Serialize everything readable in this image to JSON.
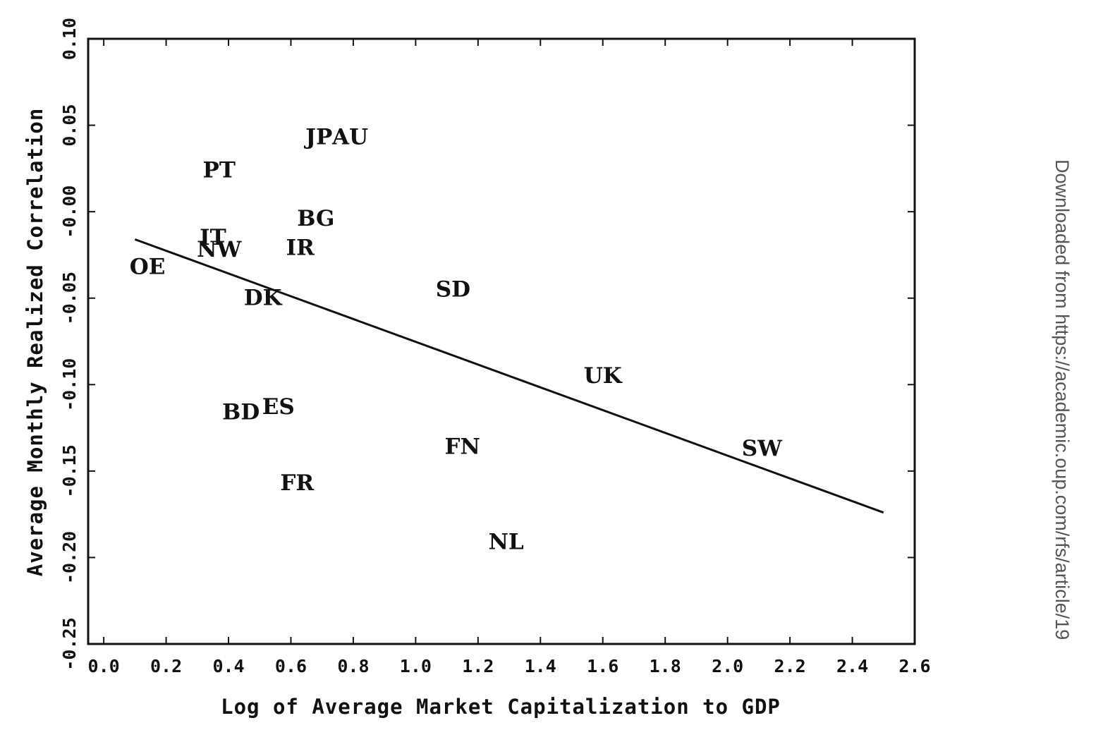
{
  "watermark": "Downloaded from https://academic.oup.com/rfs/article/19",
  "chart_data": {
    "type": "scatter",
    "title": "",
    "xlabel": "Log of Average Market Capitalization to GDP",
    "ylabel": "Average Monthly Realized Correlation",
    "xlim": [
      -0.05,
      2.6
    ],
    "ylim": [
      -0.25,
      0.1
    ],
    "xticks": [
      0.0,
      0.2,
      0.4,
      0.6,
      0.8,
      1.0,
      1.2,
      1.4,
      1.6,
      1.8,
      2.0,
      2.2,
      2.4,
      2.6
    ],
    "xtick_labels": [
      "0.0",
      "0.2",
      "0.4",
      "0.6",
      "0.8",
      "1.0",
      "1.2",
      "1.4",
      "1.6",
      "1.8",
      "2.0",
      "2.2",
      "2.4",
      "2.6"
    ],
    "yticks": [
      0.1,
      0.05,
      0.0,
      -0.05,
      -0.1,
      -0.15,
      -0.2,
      -0.25
    ],
    "ytick_labels": [
      "0.10",
      "0.05",
      "-0.00",
      "-0.05",
      "-0.10",
      "-0.15",
      "-0.20",
      "-0.25"
    ],
    "grid": false,
    "legend": "none",
    "points": [
      {
        "label": "JP",
        "x": 0.69,
        "y": 0.043
      },
      {
        "label": "AU",
        "x": 0.79,
        "y": 0.043
      },
      {
        "label": "PT",
        "x": 0.37,
        "y": 0.024
      },
      {
        "label": "BG",
        "x": 0.68,
        "y": -0.004
      },
      {
        "label": "IT",
        "x": 0.35,
        "y": -0.015
      },
      {
        "label": "NW",
        "x": 0.37,
        "y": -0.022
      },
      {
        "label": "IR",
        "x": 0.63,
        "y": -0.021
      },
      {
        "label": "OE",
        "x": 0.14,
        "y": -0.032
      },
      {
        "label": "DK",
        "x": 0.51,
        "y": -0.05
      },
      {
        "label": "SD",
        "x": 1.12,
        "y": -0.045
      },
      {
        "label": "UK",
        "x": 1.6,
        "y": -0.095
      },
      {
        "label": "BD",
        "x": 0.44,
        "y": -0.116
      },
      {
        "label": "ES",
        "x": 0.56,
        "y": -0.113
      },
      {
        "label": "FN",
        "x": 1.15,
        "y": -0.136
      },
      {
        "label": "SW",
        "x": 2.11,
        "y": -0.137
      },
      {
        "label": "FR",
        "x": 0.62,
        "y": -0.157
      },
      {
        "label": "NL",
        "x": 1.29,
        "y": -0.191
      }
    ],
    "fit_line": {
      "x": [
        0.1,
        2.5
      ],
      "y": [
        -0.016,
        -0.174
      ]
    }
  }
}
